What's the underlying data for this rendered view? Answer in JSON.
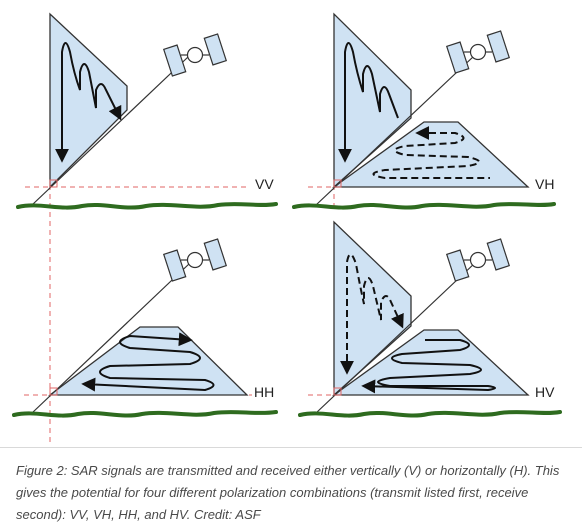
{
  "panels": [
    {
      "id": "vv",
      "label": "VV",
      "transmit": "vertical",
      "receive": "vertical"
    },
    {
      "id": "vh",
      "label": "VH",
      "transmit": "vertical",
      "receive": "horizontal"
    },
    {
      "id": "hh",
      "label": "HH",
      "transmit": "horizontal",
      "receive": "horizontal"
    },
    {
      "id": "hv",
      "label": "HV",
      "transmit": "horizontal",
      "receive": "vertical"
    }
  ],
  "colors": {
    "wave_plane_fill": "#cfe2f3",
    "ground": "#2e6b1f",
    "guide_lines": "#e06666",
    "outline": "#333333"
  },
  "icons": {
    "satellite": "satellite-icon"
  },
  "caption": "Figure 2: SAR signals are transmitted and received either vertically (V) or horizontally (H). This gives the potential for four different polarization combinations (transmit listed first, receive second): VV, VH, HH, and HV. Credit: ASF"
}
